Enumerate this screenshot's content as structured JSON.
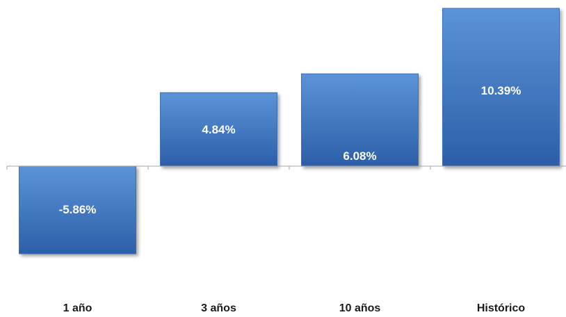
{
  "chart_data": {
    "type": "bar",
    "categories": [
      "1 año",
      "3 años",
      "10 años",
      "Histórico"
    ],
    "values": [
      -5.86,
      4.84,
      6.08,
      10.39
    ],
    "value_labels": [
      "-5.86%",
      "4.84%",
      "6.08%",
      "10.39%"
    ],
    "title": "",
    "xlabel": "",
    "ylabel": "",
    "ylim": [
      -5.86,
      10.39
    ],
    "grid": false,
    "legend": "none",
    "colors": {
      "bar_top": "#5b93d8",
      "bar_bottom": "#2c5fa8",
      "bar_border": "#3a6fb8",
      "axis": "#a6a6a6"
    }
  }
}
